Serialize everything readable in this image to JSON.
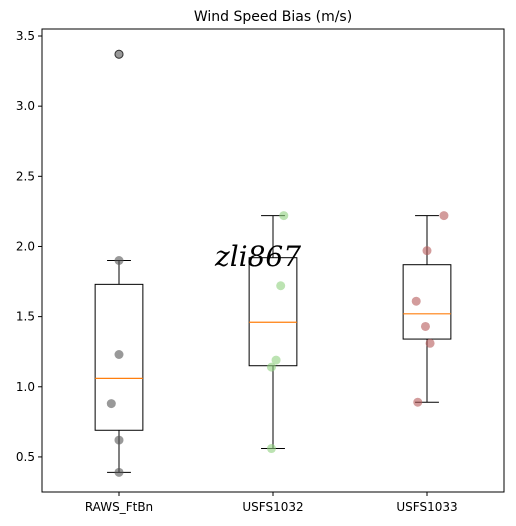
{
  "chart_data": {
    "type": "box",
    "title": "Wind Speed Bias (m/s)",
    "xlabel": "",
    "ylabel": "",
    "ylim": [
      0.25,
      3.55
    ],
    "yticks": [
      "0.5",
      "1.0",
      "1.5",
      "2.0",
      "2.5",
      "3.0",
      "3.5"
    ],
    "categories": [
      "RAWS_FtBn",
      "USFS1032",
      "USFS1033"
    ],
    "grid": false,
    "watermark": "zli867",
    "boxes": [
      {
        "name": "RAWS_FtBn",
        "whisker_low": 0.39,
        "q1": 0.69,
        "median": 1.06,
        "q3": 1.73,
        "whisker_high": 1.9,
        "outliers": [
          3.37
        ],
        "color": "#555555",
        "points": [
          {
            "x_jitter": 0.0,
            "y": 3.37
          },
          {
            "x_jitter": 0.0,
            "y": 1.9
          },
          {
            "x_jitter": 0.0,
            "y": 1.23
          },
          {
            "x_jitter": -0.05,
            "y": 0.88
          },
          {
            "x_jitter": 0.0,
            "y": 0.62
          },
          {
            "x_jitter": 0.0,
            "y": 0.39
          }
        ]
      },
      {
        "name": "USFS1032",
        "whisker_low": 0.56,
        "q1": 1.15,
        "median": 1.46,
        "q3": 1.92,
        "whisker_high": 2.22,
        "outliers": [],
        "color": "#8fd07f",
        "points": [
          {
            "x_jitter": 0.07,
            "y": 2.22
          },
          {
            "x_jitter": 0.05,
            "y": 1.72
          },
          {
            "x_jitter": 0.02,
            "y": 1.19
          },
          {
            "x_jitter": -0.01,
            "y": 1.14
          },
          {
            "x_jitter": -0.01,
            "y": 0.56
          }
        ]
      },
      {
        "name": "USFS1033",
        "whisker_low": 0.89,
        "q1": 1.34,
        "median": 1.52,
        "q3": 1.87,
        "whisker_high": 2.22,
        "outliers": [],
        "color": "#b55a5a",
        "points": [
          {
            "x_jitter": 0.11,
            "y": 2.22
          },
          {
            "x_jitter": 0.0,
            "y": 1.97
          },
          {
            "x_jitter": -0.07,
            "y": 1.61
          },
          {
            "x_jitter": -0.01,
            "y": 1.43
          },
          {
            "x_jitter": 0.02,
            "y": 1.31
          },
          {
            "x_jitter": -0.06,
            "y": 0.89
          }
        ]
      }
    ],
    "median_color": "#ff7f0e"
  }
}
